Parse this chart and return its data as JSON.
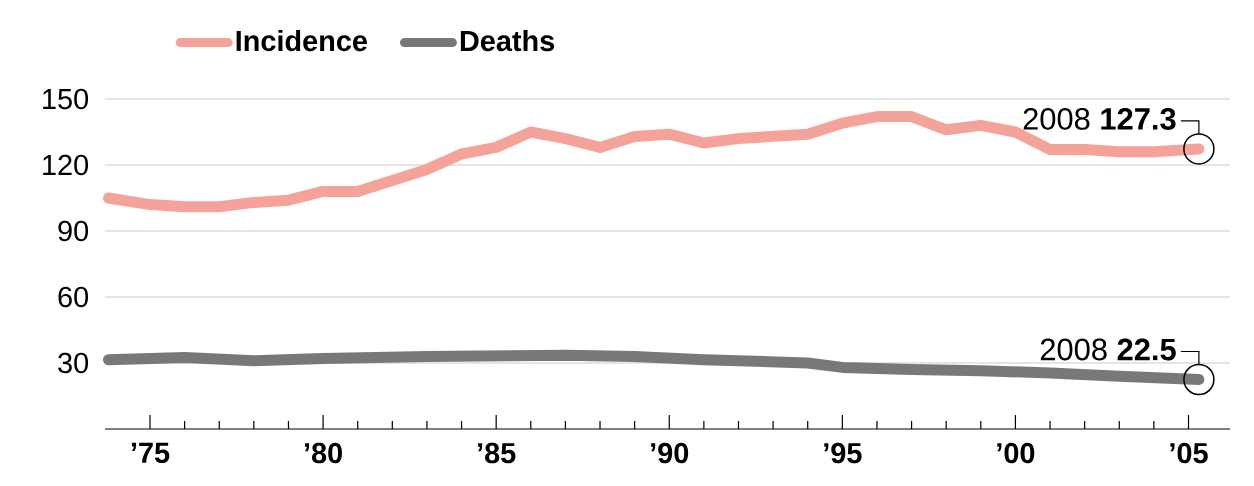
{
  "chart_data": {
    "type": "line",
    "xlim": [
      1973.7,
      2006.2
    ],
    "ylim": [
      0,
      150
    ],
    "xticks": [
      {
        "value": 1975,
        "label": "’75"
      },
      {
        "value": 1980,
        "label": "’80"
      },
      {
        "value": 1985,
        "label": "’85"
      },
      {
        "value": 1990,
        "label": "’90"
      },
      {
        "value": 1995,
        "label": "’95"
      },
      {
        "value": 2000,
        "label": "’00"
      },
      {
        "value": 2005,
        "label": "’05"
      }
    ],
    "yticks": [
      30,
      60,
      90,
      120,
      150
    ],
    "grid": "y",
    "legend": "top left",
    "marker": "none",
    "line_style": "solid",
    "series": [
      {
        "name": "Incidence",
        "color": "#f4a39b",
        "x": [
          1973.8,
          1975,
          1976,
          1977,
          1978,
          1979,
          1980,
          1981,
          1982,
          1983,
          1984,
          1985,
          1986,
          1987,
          1988,
          1989,
          1990,
          1991,
          1992,
          1993,
          1994,
          1995,
          1996,
          1997,
          1998,
          1999,
          2000,
          2001,
          2002,
          2003,
          2004,
          2005.3
        ],
        "values": [
          105,
          102,
          101,
          101,
          103,
          104,
          108,
          108,
          113,
          118,
          125,
          128,
          135,
          132,
          128,
          133,
          134,
          130,
          132,
          133,
          134,
          139,
          142,
          142,
          136,
          138,
          135,
          127,
          127,
          126,
          126,
          127.3
        ]
      },
      {
        "name": "Deaths",
        "color": "#78787b",
        "x": [
          1973.8,
          1976,
          1978,
          1980,
          1983,
          1987,
          1989,
          1991,
          1994,
          1995,
          1997,
          1999,
          2001,
          2003,
          2005.3
        ],
        "values": [
          31.5,
          32.5,
          31,
          32,
          33,
          33.5,
          33,
          31.5,
          30,
          28,
          27,
          26.5,
          25.5,
          24,
          22.5
        ]
      }
    ],
    "annotations": [
      "2008 **127.3**",
      "2008 **22.5**"
    ]
  }
}
